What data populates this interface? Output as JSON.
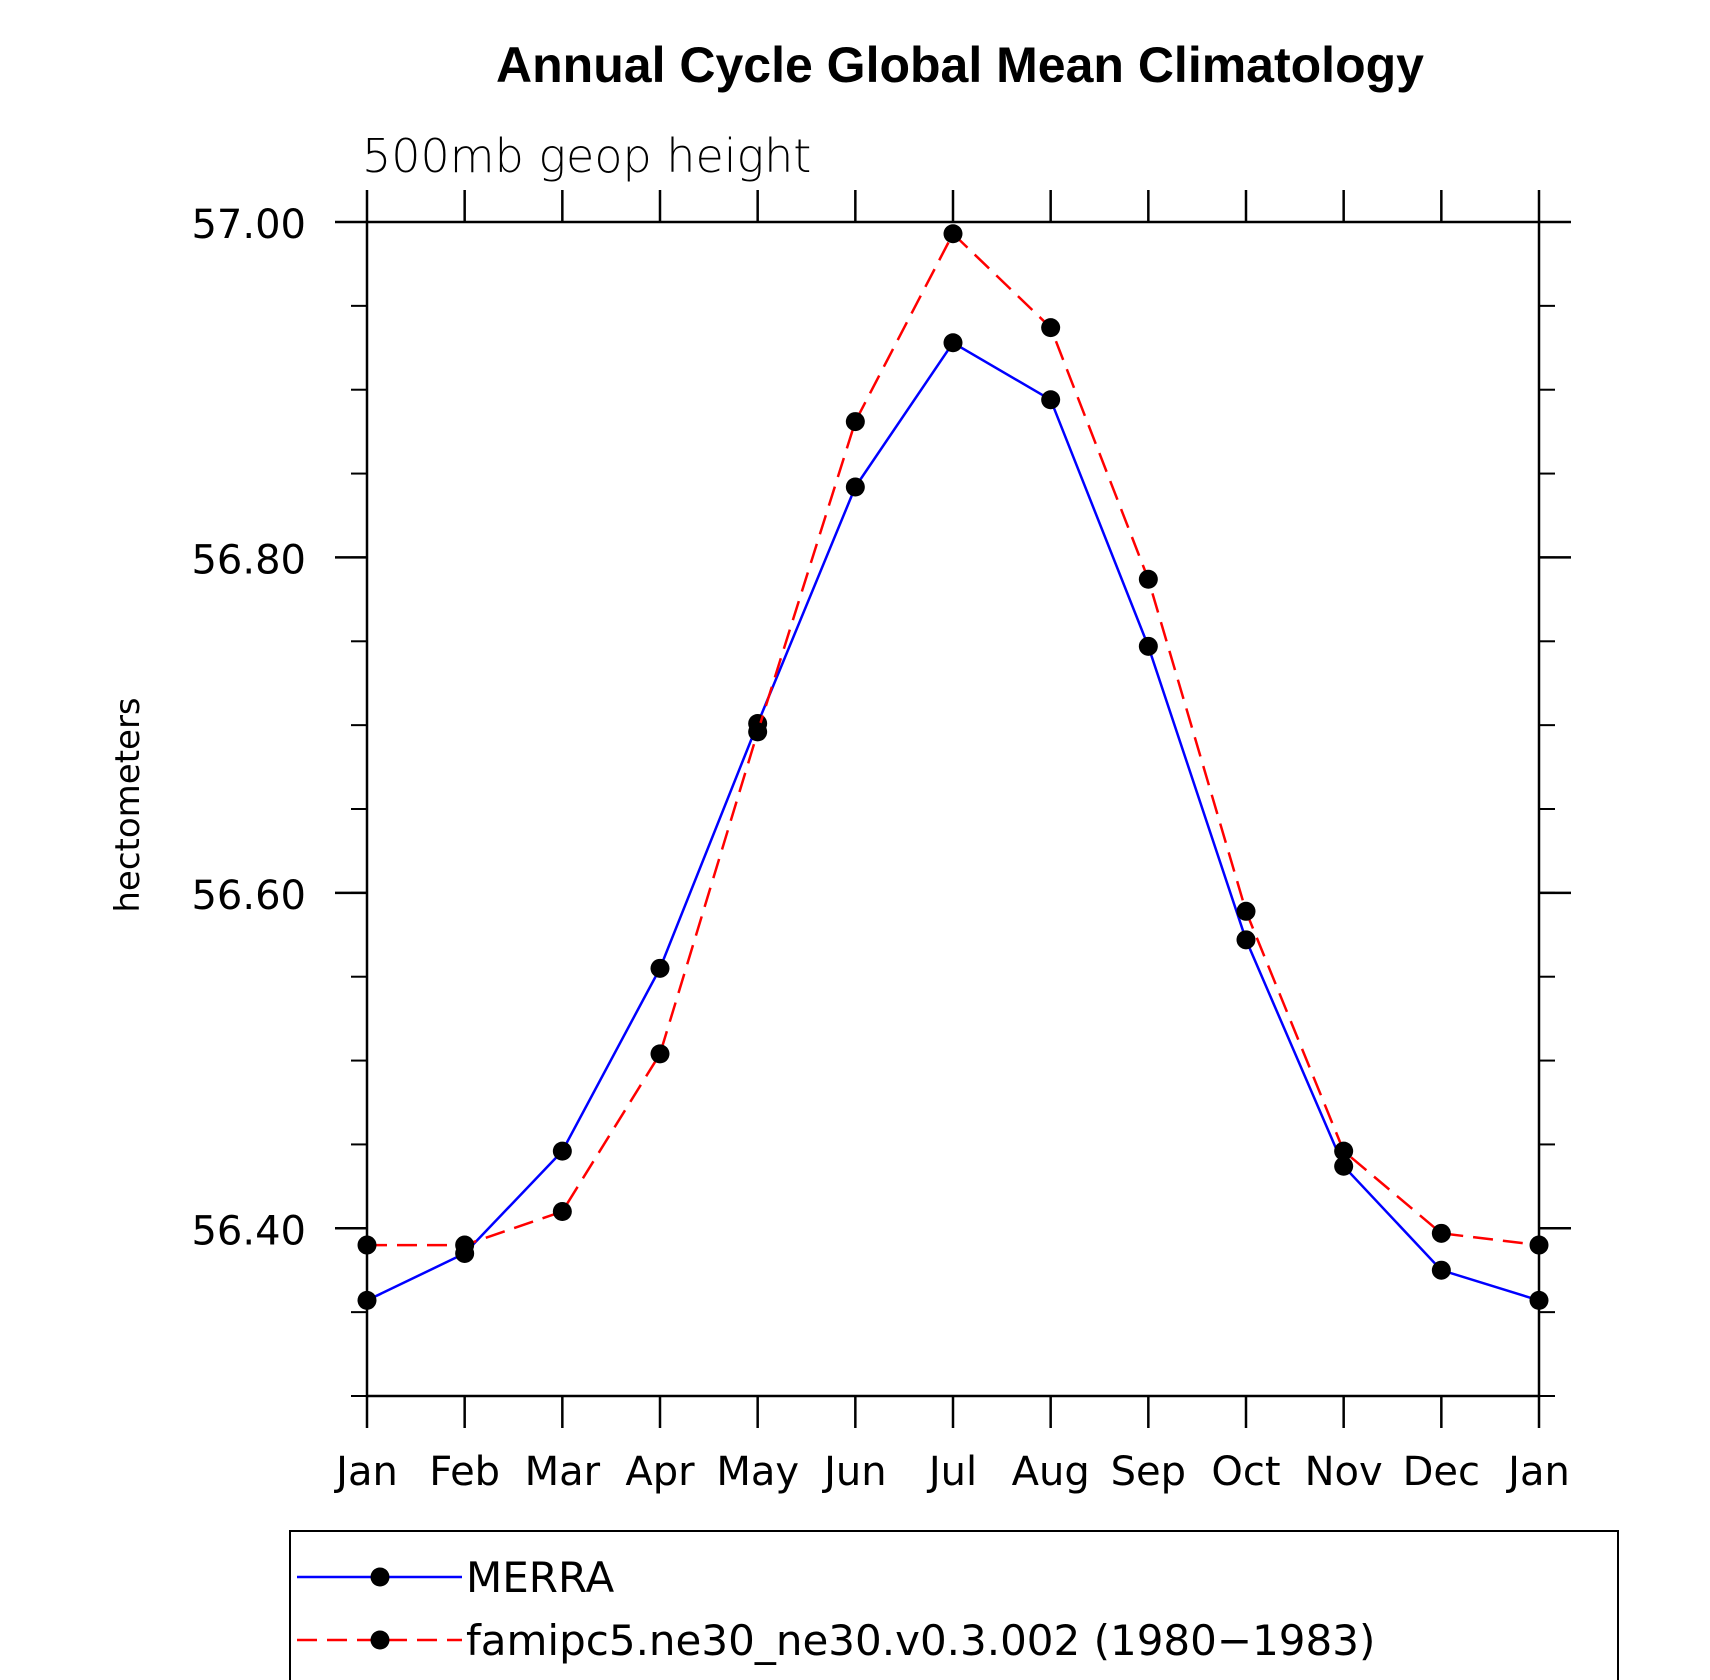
{
  "chart_data": {
    "type": "line",
    "title": "Annual Cycle Global Mean Climatology",
    "subtitle": "500mb geop height",
    "ylabel": "hectometers",
    "xlabel": "",
    "categories": [
      "Jan",
      "Feb",
      "Mar",
      "Apr",
      "May",
      "Jun",
      "Jul",
      "Aug",
      "Sep",
      "Oct",
      "Nov",
      "Dec",
      "Jan"
    ],
    "ylim": [
      56.3,
      57.0
    ],
    "yticks": [
      {
        "value": 56.4,
        "label": "56.40"
      },
      {
        "value": 56.6,
        "label": "56.60"
      },
      {
        "value": 56.8,
        "label": "56.80"
      },
      {
        "value": 57.0,
        "label": "57.00"
      }
    ],
    "y_minor_step": 0.05,
    "grid": false,
    "legend_placement": "bottom",
    "series": [
      {
        "name": "MERRA",
        "color": "#0000ff",
        "dash": "solid",
        "marker": "filled-circle",
        "values": [
          56.357,
          56.385,
          56.446,
          56.555,
          56.701,
          56.842,
          56.928,
          56.894,
          56.747,
          56.572,
          56.437,
          56.375,
          56.357
        ]
      },
      {
        "name": "famipc5.ne30_ne30.v0.3.002 (1980−1983)",
        "color": "#ff0000",
        "dash": "dashed",
        "marker": "filled-circle",
        "values": [
          56.39,
          56.39,
          56.41,
          56.504,
          56.696,
          56.881,
          56.993,
          56.937,
          56.787,
          56.589,
          56.446,
          56.397,
          56.39
        ]
      }
    ]
  }
}
